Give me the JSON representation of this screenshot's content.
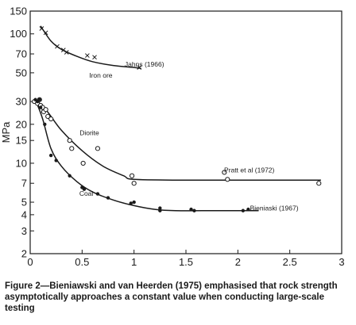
{
  "chart_data": {
    "type": "scatter",
    "xlim": [
      0,
      3
    ],
    "ylim": [
      2,
      150
    ],
    "yscale": "log",
    "grid": false,
    "xlabel": "",
    "ylabel": "MPa",
    "x_ticks": [
      0,
      0.5,
      1,
      1.5,
      2,
      2.5,
      3
    ],
    "x_tick_labels": [
      "0",
      "0.5",
      "1",
      "1.5",
      "2",
      "2.5",
      "3"
    ],
    "y_ticks": [
      2,
      3,
      4,
      5,
      7,
      10,
      15,
      20,
      30,
      50,
      70,
      100,
      150
    ],
    "y_tick_labels": [
      "2",
      "3",
      "4",
      "5",
      "7",
      "10",
      "15",
      "20",
      "30",
      "50",
      "70",
      "100",
      "150"
    ],
    "series": [
      {
        "name": "Iron ore",
        "marker": "cross",
        "points": [
          [
            0.11,
            110
          ],
          [
            0.15,
            102
          ],
          [
            0.26,
            80
          ],
          [
            0.32,
            75
          ],
          [
            0.35,
            72
          ],
          [
            0.55,
            68
          ],
          [
            0.62,
            66
          ],
          [
            1.05,
            55
          ]
        ],
        "curve": [
          [
            0.1,
            115
          ],
          [
            0.2,
            88
          ],
          [
            0.3,
            76
          ],
          [
            0.45,
            67
          ],
          [
            0.6,
            61
          ],
          [
            0.8,
            57
          ],
          [
            1.0,
            55
          ],
          [
            1.07,
            54
          ]
        ]
      },
      {
        "name": "Diorite",
        "marker": "circle",
        "points": [
          [
            0.04,
            30
          ],
          [
            0.07,
            29
          ],
          [
            0.09,
            31
          ],
          [
            0.1,
            28
          ],
          [
            0.12,
            27
          ],
          [
            0.13,
            25
          ],
          [
            0.15,
            26
          ],
          [
            0.17,
            23
          ],
          [
            0.2,
            22
          ],
          [
            0.38,
            15
          ],
          [
            0.4,
            13
          ],
          [
            0.51,
            10
          ],
          [
            0.65,
            13
          ],
          [
            0.98,
            8
          ],
          [
            1.0,
            7
          ],
          [
            1.87,
            8.5
          ],
          [
            1.9,
            7.5
          ],
          [
            2.78,
            7
          ]
        ],
        "curve": [
          [
            0.04,
            31
          ],
          [
            0.15,
            26
          ],
          [
            0.3,
            18
          ],
          [
            0.5,
            12.5
          ],
          [
            0.7,
            9.5
          ],
          [
            0.9,
            8
          ],
          [
            1.0,
            7.5
          ],
          [
            1.5,
            7.4
          ],
          [
            2.0,
            7.4
          ],
          [
            2.5,
            7.4
          ],
          [
            2.8,
            7.4
          ]
        ]
      },
      {
        "name": "Coal",
        "marker": "dot",
        "points": [
          [
            0.05,
            31
          ],
          [
            0.07,
            30
          ],
          [
            0.09,
            31
          ],
          [
            0.1,
            27
          ],
          [
            0.14,
            20
          ],
          [
            0.2,
            11.5
          ],
          [
            0.25,
            10.5
          ],
          [
            0.38,
            8
          ],
          [
            0.5,
            6.5
          ],
          [
            0.52,
            6.3
          ],
          [
            0.65,
            5.8
          ],
          [
            0.75,
            5.4
          ],
          [
            0.97,
            4.9
          ],
          [
            1.0,
            5
          ],
          [
            1.25,
            4.5
          ],
          [
            1.25,
            4.3
          ],
          [
            1.55,
            4.4
          ],
          [
            1.58,
            4.3
          ],
          [
            2.05,
            4.3
          ],
          [
            2.1,
            4.4
          ]
        ],
        "curve": [
          [
            0.05,
            31
          ],
          [
            0.12,
            22
          ],
          [
            0.2,
            13
          ],
          [
            0.3,
            9.5
          ],
          [
            0.45,
            7.2
          ],
          [
            0.6,
            6
          ],
          [
            0.8,
            5.2
          ],
          [
            1.0,
            4.7
          ],
          [
            1.2,
            4.4
          ],
          [
            1.4,
            4.3
          ],
          [
            1.8,
            4.3
          ],
          [
            2.2,
            4.3
          ]
        ]
      }
    ],
    "annotations": [
      {
        "text": "Jahns (1966)",
        "x": 1.1,
        "y": 56
      },
      {
        "text": "Iron ore",
        "x": 0.68,
        "y": 46
      },
      {
        "text": "Diorite",
        "x": 0.57,
        "y": 16.5
      },
      {
        "text": "Pratt et al (1972)",
        "x": 2.11,
        "y": 8.5
      },
      {
        "text": "Coal",
        "x": 0.54,
        "y": 5.6
      },
      {
        "text": "Bieniaski (1967)",
        "x": 2.35,
        "y": 4.3
      }
    ]
  },
  "caption": "Figure 2—Bieniawski and van Heerden (1975) emphasised that rock strength asymptotically approaches a constant value when conducting large-scale testing",
  "colors": {
    "ink": "#1a1a1a",
    "background": "#ffffff"
  }
}
